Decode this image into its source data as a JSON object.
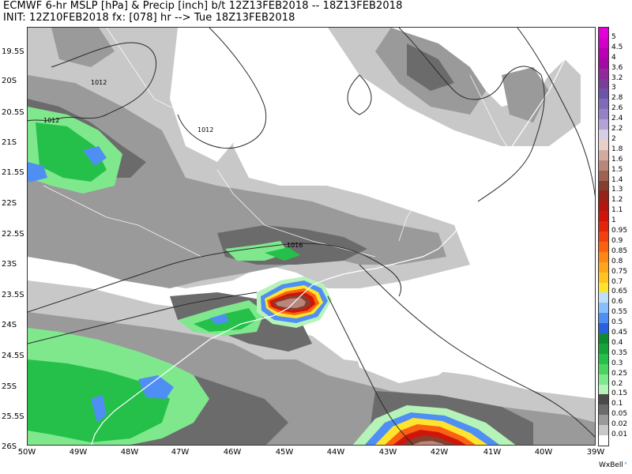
{
  "header": {
    "line1": "ECMWF 6-hr MSLP [hPa] & Precip [inch] b/t 12Z13FEB2018 -- 18Z13FEB2018",
    "line2": "INIT: 12Z10FEB2018 fx: [078] hr --> Tue 18Z13FEB2018"
  },
  "map": {
    "latitude_labels": [
      "19.5S",
      "20S",
      "20.5S",
      "21S",
      "21.5S",
      "22S",
      "22.5S",
      "23S",
      "23.5S",
      "24S",
      "24.5S",
      "25S",
      "25.5S",
      "26S"
    ],
    "longitude_labels": [
      "50W",
      "49W",
      "48W",
      "47W",
      "46W",
      "45W",
      "44W",
      "43W",
      "42W",
      "41W",
      "40W",
      "39W"
    ],
    "isobar_labels": [
      "1012",
      "1012",
      "1012",
      "1016"
    ],
    "colors": {
      "land_border": "#ffffff",
      "isobar": "#2a2a2a",
      "coastline": "#ffffff"
    }
  },
  "colorbar": {
    "levels": [
      "5",
      "4.5",
      "4",
      "3.6",
      "3.2",
      "3",
      "2.8",
      "2.6",
      "2.4",
      "2.2",
      "2",
      "1.8",
      "1.6",
      "1.5",
      "1.4",
      "1.3",
      "1.2",
      "1.1",
      "1",
      "0.95",
      "0.9",
      "0.85",
      "0.8",
      "0.75",
      "0.7",
      "0.65",
      "0.6",
      "0.55",
      "0.5",
      "0.45",
      "0.4",
      "0.35",
      "0.3",
      "0.25",
      "0.2",
      "0.15",
      "0.1",
      "0.05",
      "0.02",
      "0.01"
    ],
    "colors": [
      "#e300d6",
      "#d000c8",
      "#b900b4",
      "#a20aa2",
      "#8e2a9a",
      "#7a3d99",
      "#6c55a8",
      "#7e6cb8",
      "#9582c6",
      "#b1a3d5",
      "#d7cde6",
      "#e8cfc8",
      "#d3aaa0",
      "#b8867a",
      "#9e6253",
      "#84402f",
      "#962319",
      "#b2170f",
      "#cf1509",
      "#e3250b",
      "#f2410f",
      "#fa6112",
      "#fe8617",
      "#ffa41d",
      "#ffc324",
      "#ffe32c",
      "#bfe0fb",
      "#87befb",
      "#4f8ff4",
      "#2a61e0",
      "#0f8a30",
      "#16a43a",
      "#24c049",
      "#49d55f",
      "#7fe88c",
      "#b5f3b8",
      "#4a4a4a",
      "#6b6b6b",
      "#9a9a9a",
      "#c8c8c8",
      "#ffffff"
    ]
  },
  "credit": {
    "label": "WxBell",
    "dot": "°"
  }
}
